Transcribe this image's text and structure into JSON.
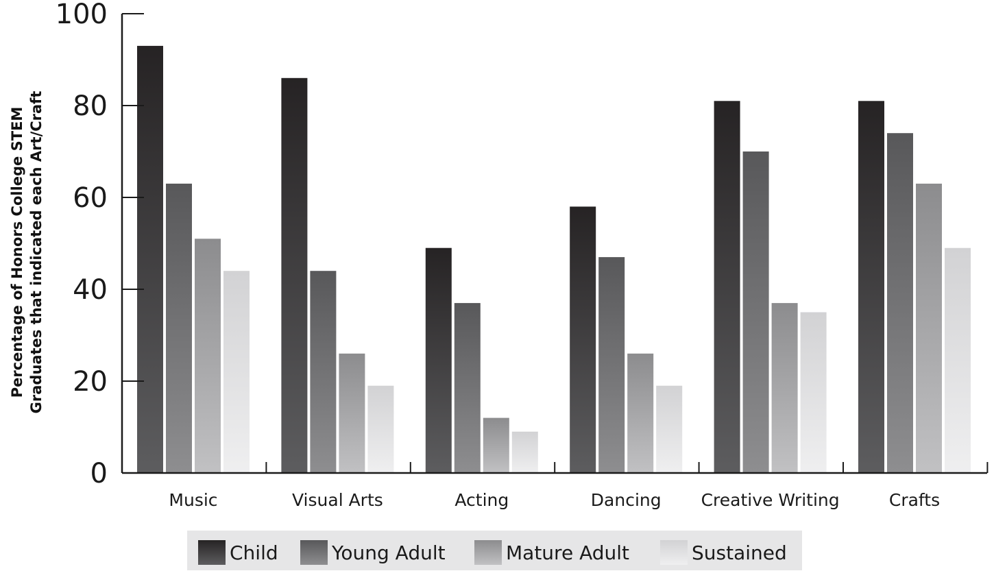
{
  "chart_data": {
    "type": "bar",
    "title": "",
    "xlabel": "",
    "ylabel_lines": [
      "Percentage of Honors College STEM",
      "Graduates that indicated each Art/Craft"
    ],
    "ylim": [
      0,
      100
    ],
    "yticks": [
      "0",
      "20",
      "40",
      "60",
      "80",
      "100"
    ],
    "categories": [
      "Music",
      "Visual Arts",
      "Acting",
      "Dancing",
      "Creative Writing",
      "Crafts"
    ],
    "series": [
      {
        "name": "Child",
        "values": [
          93,
          86,
          49,
          58,
          81,
          81
        ],
        "color_top": "#262324",
        "color_bottom": "#5d5d5f"
      },
      {
        "name": "Young Adult",
        "values": [
          63,
          44,
          37,
          47,
          70,
          74
        ],
        "color_top": "#58585a",
        "color_bottom": "#8e8e90"
      },
      {
        "name": "Mature Adult",
        "values": [
          51,
          26,
          12,
          26,
          37,
          63
        ],
        "color_top": "#8c8c8e",
        "color_bottom": "#c1c1c3"
      },
      {
        "name": "Sustained",
        "values": [
          44,
          19,
          9,
          19,
          35,
          49
        ],
        "color_top": "#d2d2d4",
        "color_bottom": "#efeff0"
      }
    ],
    "grid": false,
    "legend_position": "bottom",
    "legend_background": "#e6e6e7"
  }
}
